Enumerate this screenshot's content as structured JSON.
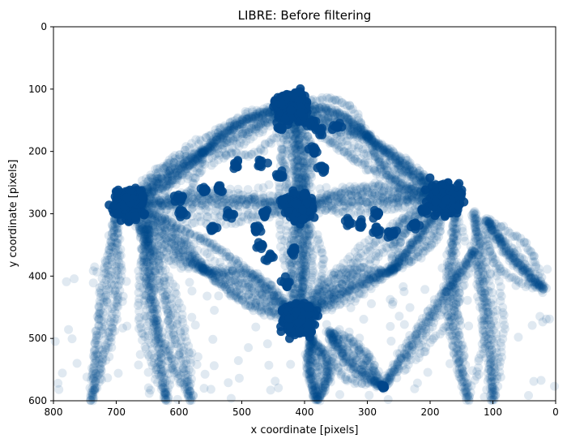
{
  "chart_data": {
    "type": "scatter",
    "title": "LIBRE: Before filtering",
    "xlabel": "x coordinate [pixels]",
    "ylabel": "y coordinate [pixels]",
    "xlim": [
      800,
      0
    ],
    "ylim": [
      600,
      0
    ],
    "x_inverted": true,
    "y_inverted": true,
    "grid": false,
    "marker_color": "#00468b",
    "marker_alpha": 0.12,
    "x_ticks": [
      "800",
      "700",
      "600",
      "500",
      "400",
      "300",
      "200",
      "100",
      "0"
    ],
    "y_ticks": [
      "0",
      "100",
      "200",
      "300",
      "400",
      "500",
      "600"
    ],
    "clusters": [
      {
        "name": "left",
        "x": 680,
        "y": 285,
        "spread": 22
      },
      {
        "name": "right",
        "x": 175,
        "y": 275,
        "spread": 20
      },
      {
        "name": "top",
        "x": 420,
        "y": 130,
        "spread": 22
      },
      {
        "name": "center",
        "x": 410,
        "y": 290,
        "spread": 18
      },
      {
        "name": "bottom",
        "x": 410,
        "y": 470,
        "spread": 22
      },
      {
        "name": "small",
        "x": 275,
        "y": 578,
        "spread": 3
      }
    ],
    "blobs": [
      [
        510,
        222
      ],
      [
        468,
        222
      ],
      [
        440,
        237
      ],
      [
        370,
        228
      ],
      [
        385,
        200
      ],
      [
        375,
        165
      ],
      [
        350,
        160
      ],
      [
        390,
        155
      ],
      [
        600,
        275
      ],
      [
        595,
        300
      ],
      [
        560,
        260
      ],
      [
        535,
        260
      ],
      [
        520,
        300
      ],
      [
        465,
        300
      ],
      [
        475,
        325
      ],
      [
        435,
        280
      ],
      [
        545,
        325
      ],
      [
        310,
        318
      ],
      [
        330,
        314
      ],
      [
        285,
        300
      ],
      [
        285,
        328
      ],
      [
        260,
        330
      ],
      [
        225,
        320
      ],
      [
        210,
        295
      ],
      [
        470,
        350
      ],
      [
        420,
        360
      ],
      [
        455,
        370
      ],
      [
        430,
        410
      ],
      [
        440,
        160
      ]
    ],
    "paths": [
      [
        [
          680,
          285
        ],
        [
          420,
          130
        ]
      ],
      [
        [
          680,
          285
        ],
        [
          175,
          275
        ]
      ],
      [
        [
          680,
          285
        ],
        [
          410,
          470
        ]
      ],
      [
        [
          420,
          130
        ],
        [
          175,
          275
        ]
      ],
      [
        [
          175,
          275
        ],
        [
          410,
          470
        ]
      ],
      [
        [
          420,
          130
        ],
        [
          410,
          470
        ]
      ],
      [
        [
          680,
          285
        ],
        [
          410,
          290
        ]
      ],
      [
        [
          410,
          290
        ],
        [
          175,
          275
        ]
      ],
      [
        [
          420,
          130
        ],
        [
          410,
          290
        ]
      ],
      [
        [
          410,
          290
        ],
        [
          410,
          470
        ]
      ],
      [
        [
          680,
          285
        ],
        [
          560,
          200
        ]
      ],
      [
        [
          560,
          200
        ],
        [
          420,
          130
        ]
      ],
      [
        [
          175,
          275
        ],
        [
          300,
          175
        ]
      ],
      [
        [
          300,
          175
        ],
        [
          420,
          130
        ]
      ],
      [
        [
          680,
          285
        ],
        [
          560,
          390
        ]
      ],
      [
        [
          560,
          390
        ],
        [
          410,
          470
        ]
      ],
      [
        [
          175,
          275
        ],
        [
          260,
          390
        ]
      ],
      [
        [
          260,
          390
        ],
        [
          410,
          470
        ]
      ],
      [
        [
          650,
          320
        ],
        [
          620,
          600
        ]
      ],
      [
        [
          700,
          300
        ],
        [
          740,
          600
        ]
      ],
      [
        [
          130,
          300
        ],
        [
          100,
          600
        ]
      ],
      [
        [
          110,
          310
        ],
        [
          20,
          420
        ]
      ],
      [
        [
          160,
          300
        ],
        [
          140,
          600
        ]
      ],
      [
        [
          390,
          500
        ],
        [
          380,
          600
        ]
      ],
      [
        [
          360,
          490
        ],
        [
          280,
          575
        ]
      ],
      [
        [
          275,
          578
        ],
        [
          130,
          360
        ]
      ],
      [
        [
          660,
          320
        ],
        [
          580,
          600
        ]
      ]
    ]
  }
}
